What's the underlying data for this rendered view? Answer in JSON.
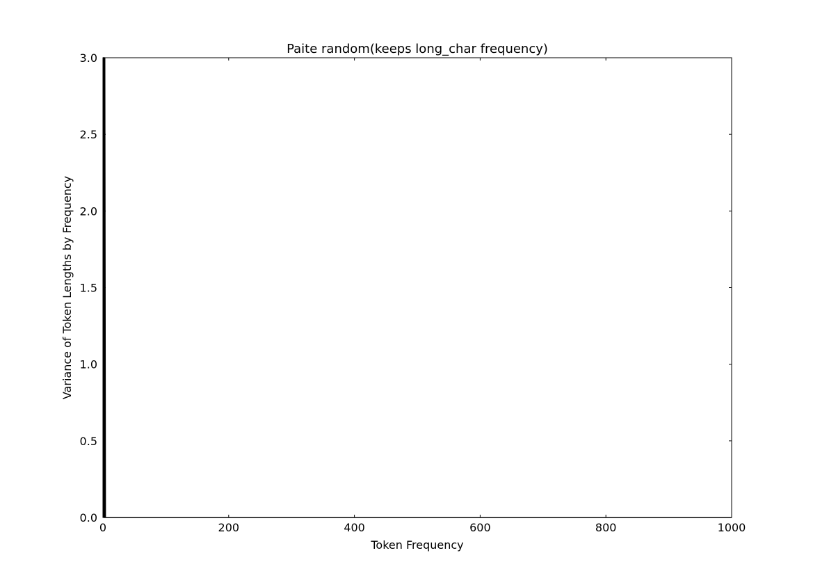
{
  "chart_data": {
    "type": "line",
    "title": "Paite random(keeps long_char frequency)",
    "xlabel": "Token Frequency",
    "ylabel": "Variance of Token Lengths by Frequency",
    "xlim": [
      0,
      1000
    ],
    "ylim": [
      0,
      3.0
    ],
    "xticks": [
      0,
      200,
      400,
      600,
      800,
      1000
    ],
    "xtick_labels": [
      "0",
      "200",
      "400",
      "600",
      "800",
      "1000"
    ],
    "yticks": [
      0,
      0.5,
      1.0,
      1.5,
      2.0,
      2.5,
      3.0
    ],
    "ytick_labels": [
      "0.0",
      "0.5",
      "1.0",
      "1.5",
      "2.0",
      "2.5",
      "3.0"
    ],
    "grid": false,
    "series": [
      {
        "color": "#000000",
        "x": [
          1,
          1,
          2,
          2,
          3,
          3,
          4,
          5,
          10,
          20,
          40,
          70,
          100,
          150,
          200,
          300,
          400,
          600,
          800,
          1000
        ],
        "y": [
          0.0,
          3.0,
          3.0,
          0.0,
          0.0,
          3.0,
          0.0,
          0.0,
          0.0,
          0.0,
          0.0,
          0.0,
          0.0,
          0.0,
          0.0,
          0.0,
          0.0,
          0.0,
          0.0,
          0.0
        ]
      }
    ]
  }
}
